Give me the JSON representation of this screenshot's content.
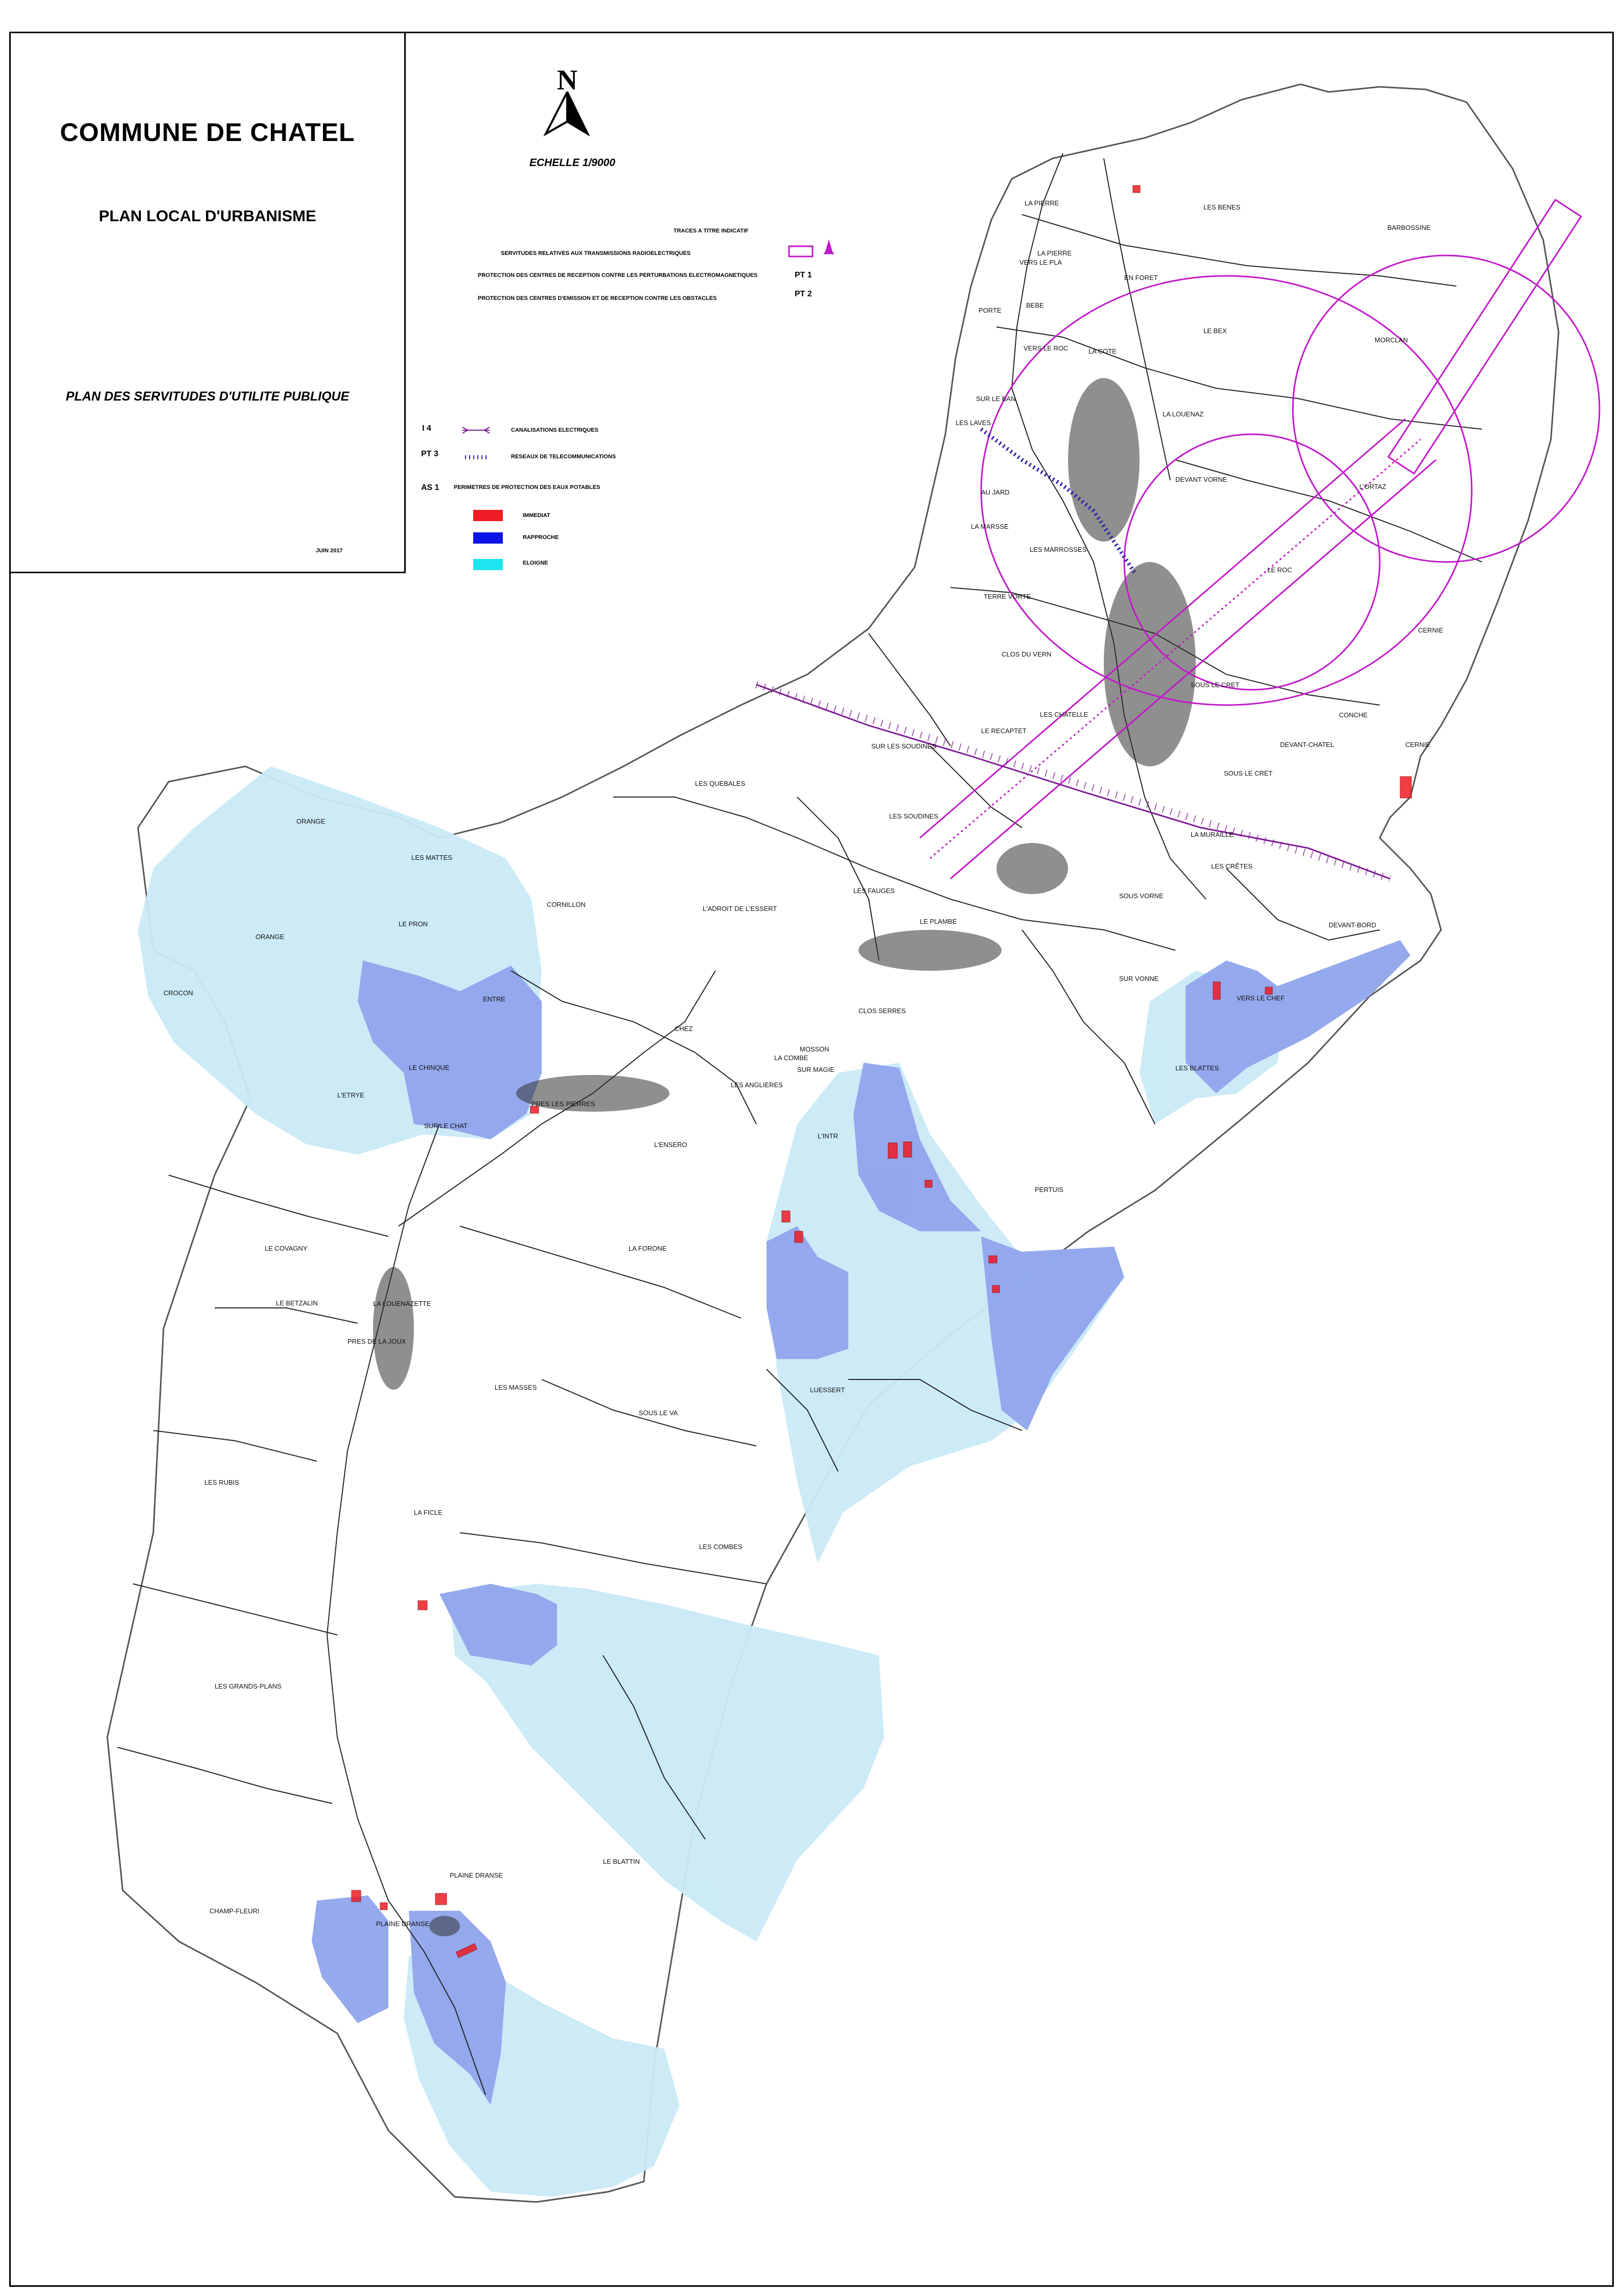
{
  "title": {
    "commune": "COMMUNE DE CHATEL",
    "document": "PLAN LOCAL D'URBANISME",
    "plan": "PLAN DES SERVITUDES D'UTILITE PUBLIQUE",
    "date": "JUIN 2017"
  },
  "north": {
    "letter": "N",
    "scale": "ECHELLE 1/9000"
  },
  "legend": {
    "traces": "TRACES A TITRE INDICATIF",
    "radio": "SERVITUDES RELATIVES AUX TRANSMISSIONS RADIOELECTRIQUES",
    "pt1_text": "PROTECTION DES CENTRES DE RECEPTION CONTRE LES PERTURBATIONS ELECTROMAGNETIQUES",
    "pt1_code": "PT 1",
    "pt2_text": "PROTECTION DES CENTRES D'EMISSION ET DE RECEPTION CONTRE LES OBSTACLES",
    "pt2_code": "PT 2",
    "i4_code": "I 4",
    "i4_text": "CANALISATIONS ELECTRIQUES",
    "pt3_code": "PT 3",
    "pt3_text": "RESEAUX DE TELECOMMUNICATIONS",
    "as1_code": "AS 1",
    "as1_text": "PERIMETRES DE PROTECTION DES EAUX POTABLES",
    "immediat": "IMMEDIAT",
    "rapproche": "RAPPROCHE",
    "eloigne": "ELOIGNE"
  },
  "colors": {
    "immediat": "#ee1c24",
    "rapproche": "#0a14e6",
    "eloigne": "#1ee6f0",
    "rapproche_zone": "#8fa4ec",
    "eloigne_zone": "#c9eaf7",
    "servitude": "#c218c9"
  },
  "places": [
    "LA PIERRE",
    "LES BENES",
    "BARBOSSINE",
    "VERS LE PLA",
    "LA PIERRE",
    "EN FORET",
    "BEBE",
    "PORTE",
    "VERS LE ROC",
    "LA COTE",
    "LE BEX",
    "MORCLAN",
    "SUR LE BAN",
    "LES LAVES",
    "LA LOUENAZ",
    "L'ORTAZ",
    "AU JARD",
    "DEVANT VORNE",
    "LA MARSSE",
    "LES MARROSSES",
    "LE ROC",
    "TERRE VORTE",
    "CLOS DU VERN",
    "CERNIE",
    "LES CHATELLE",
    "SOUS LE CRET",
    "CONCHE",
    "LE RECAPTET",
    "SUR LES SOUDINES",
    "DEVANT-CHATEL",
    "LES SOUDINES",
    "LES QUEBALES",
    "SOUS LE CRET",
    "CERNIE",
    "ORANGE",
    "LES MATTES",
    "LA MURAILLE",
    "LE PRON",
    "CORNILLON",
    "L'ADROIT DE L'ESSERT",
    "LES FAUGES",
    "LES CRÊTES",
    "DEVANT-BORD",
    "ORANGE",
    "CROCON",
    "LE PLAMBE",
    "SOUS VORNE",
    "ENTRE",
    "CLOS SERRES",
    "SUR VONNE",
    "VERS LE CHEF",
    "LE CHINQUE",
    "CHEZ",
    "MOSSON",
    "LES BLATTES",
    "LA COMBE",
    "LES ANGLIERES",
    "L'ETRYE",
    "PRES LES PIERRES",
    "SUR MAGIE",
    "SUR LE CHAT",
    "L'ENSERO",
    "L'INTR",
    "PERTUIS",
    "LE COVAGNY",
    "LA FORONE",
    "LE BETZALIN",
    "LA LOUENAZETTE",
    "PRES DE LA JOUX",
    "LUESSERT",
    "LES MASSES",
    "SOUS LE VA",
    "LES RUBIS",
    "LA FICLE",
    "LES COMBES",
    "LES GRANDS-PLANS",
    "LE BLATTIN",
    "PLAINE DRANSE",
    "CHAMP-FLEURI",
    "PLAINE DRANSE"
  ]
}
